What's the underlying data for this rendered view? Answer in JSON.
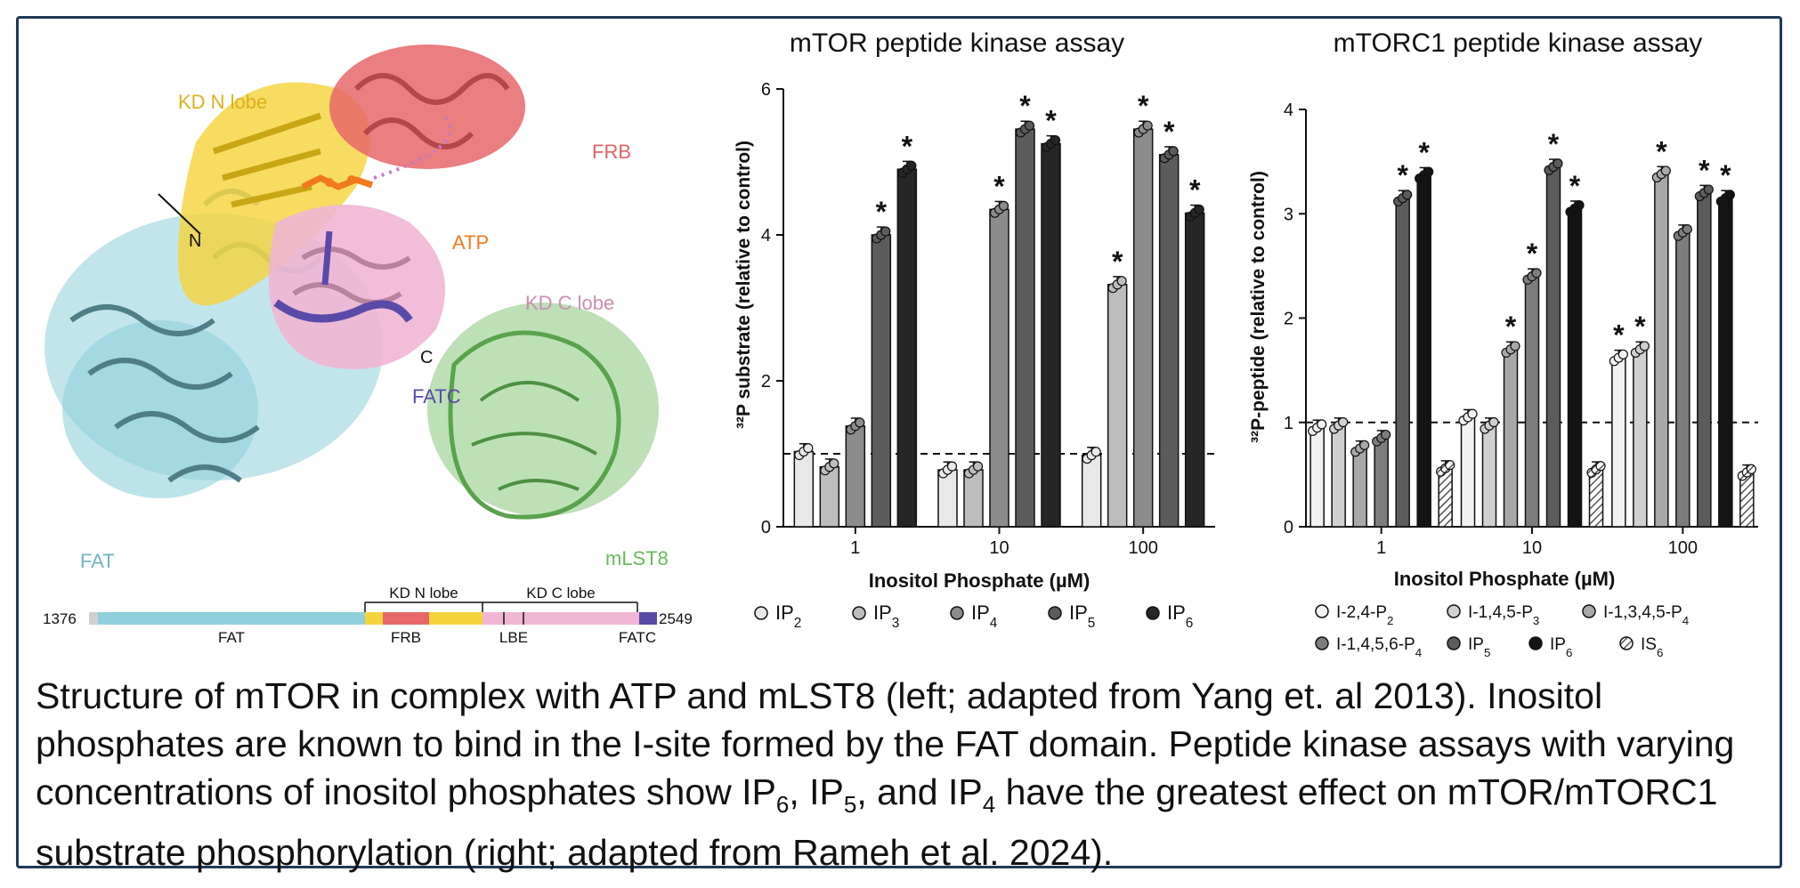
{
  "structure": {
    "labels": {
      "kd_n_lobe": "KD N lobe",
      "frb": "FRB",
      "atp": "ATP",
      "n": "N",
      "c": "C",
      "kd_c_lobe": "KD C lobe",
      "fatc": "FATC",
      "fat": "FAT",
      "mlst8": "mLST8"
    },
    "colors": {
      "fat": "#8fd0da",
      "kd_n": "#f5d33a",
      "frb": "#e8676a",
      "kd_c": "#f0b6d4",
      "fatc": "#5a4aa8",
      "mlst8": "#86c77a",
      "atp": "#f07a1c"
    }
  },
  "domain_bar": {
    "start": "1376",
    "end": "2549",
    "group_n": "KD N lobe",
    "group_c": "KD C lobe",
    "segments": [
      "FAT",
      "FRB",
      "LBE",
      "FATC"
    ]
  },
  "chart_data": [
    {
      "type": "bar",
      "title": "mTOR peptide kinase assay",
      "xlabel": "Inositol Phosphate (µM)",
      "ylabel": "³²P substrate (relative to control)",
      "ylim": [
        0,
        6
      ],
      "yticks": [
        "0",
        "2",
        "4",
        "6"
      ],
      "categories": [
        "1",
        "10",
        "100"
      ],
      "reference_line": 1,
      "series": [
        {
          "name": "IP2",
          "color": "#e8e8e8",
          "values": [
            1.03,
            0.78,
            0.98
          ],
          "star": [
            "",
            "",
            ""
          ]
        },
        {
          "name": "IP3",
          "color": "#bdbdbd",
          "values": [
            0.82,
            0.78,
            3.32
          ],
          "star": [
            "",
            "",
            "*"
          ]
        },
        {
          "name": "IP4",
          "color": "#8c8c8c",
          "values": [
            1.38,
            4.35,
            5.45
          ],
          "star": [
            "",
            "*",
            "*"
          ]
        },
        {
          "name": "IP5",
          "color": "#5c5c5c",
          "values": [
            4.0,
            5.45,
            5.1
          ],
          "star": [
            "*",
            "*",
            "*"
          ]
        },
        {
          "name": "IP6",
          "color": "#262626",
          "values": [
            4.9,
            5.25,
            4.3
          ],
          "star": [
            "*",
            "*",
            "*"
          ]
        }
      ],
      "legend": [
        {
          "base": "IP",
          "sub": "2"
        },
        {
          "base": "IP",
          "sub": "3"
        },
        {
          "base": "IP",
          "sub": "4"
        },
        {
          "base": "IP",
          "sub": "5"
        },
        {
          "base": "IP",
          "sub": "6"
        }
      ]
    },
    {
      "type": "bar",
      "title": "mTORC1 peptide kinase assay",
      "xlabel": "Inositol Phosphate (µM)",
      "ylabel": "³²P-peptide (relative to control)",
      "ylim": [
        0,
        4
      ],
      "yticks": [
        "0",
        "1",
        "2",
        "3",
        "4"
      ],
      "categories": [
        "1",
        "10",
        "100"
      ],
      "reference_line": 1,
      "series": [
        {
          "name": "I-2,4-P2",
          "color": "#f2f2f2",
          "values": [
            0.95,
            1.05,
            1.62
          ],
          "star": [
            "",
            "",
            "*"
          ]
        },
        {
          "name": "I-1,4,5-P3",
          "color": "#d0d0d0",
          "values": [
            0.97,
            0.97,
            1.7
          ],
          "star": [
            "",
            "",
            "*"
          ]
        },
        {
          "name": "I-1,3,4,5-P4",
          "color": "#a8a8a8",
          "values": [
            0.75,
            1.7,
            3.38
          ],
          "star": [
            "",
            "*",
            "*"
          ]
        },
        {
          "name": "I-1,4,5,6-P4",
          "color": "#7d7d7d",
          "values": [
            0.85,
            2.4,
            2.82
          ],
          "star": [
            "",
            "*",
            ""
          ]
        },
        {
          "name": "IP5",
          "color": "#5c5c5c",
          "values": [
            3.15,
            3.45,
            3.2
          ],
          "star": [
            "*",
            "*",
            "*"
          ]
        },
        {
          "name": "IP6",
          "color": "#141414",
          "values": [
            3.37,
            3.05,
            3.15
          ],
          "star": [
            "*",
            "*",
            "*"
          ]
        },
        {
          "name": "IS6",
          "color": "hatch",
          "values": [
            0.56,
            0.55,
            0.52
          ],
          "star": [
            "",
            "",
            ""
          ]
        }
      ],
      "legend": [
        {
          "base": "I-2,4-P",
          "sub": "2"
        },
        {
          "base": "I-1,4,5-P",
          "sub": "3"
        },
        {
          "base": "I-1,3,4,5-P",
          "sub": "4"
        },
        {
          "base": "I-1,4,5,6-P",
          "sub": "4"
        },
        {
          "base": "IP",
          "sub": "5"
        },
        {
          "base": "IP",
          "sub": "6"
        },
        {
          "base": "IS",
          "sub": "6"
        }
      ]
    }
  ],
  "caption": {
    "p1": "Structure of mTOR in complex with ATP and mLST8 (left; adapted from Yang et. al 2013). Inositol phosphates are known to bind in the I-site formed by the FAT domain. Peptide kinase assays with varying concentrations of inositol phosphates show IP",
    "s1": "6",
    "p2": ", IP",
    "s2": "5",
    "p3": ", and IP",
    "s3": "4",
    "p4": " have the greatest effect on mTOR/mTORC1 substrate phosphorylation (right; adapted from Rameh et al. 2024)."
  }
}
